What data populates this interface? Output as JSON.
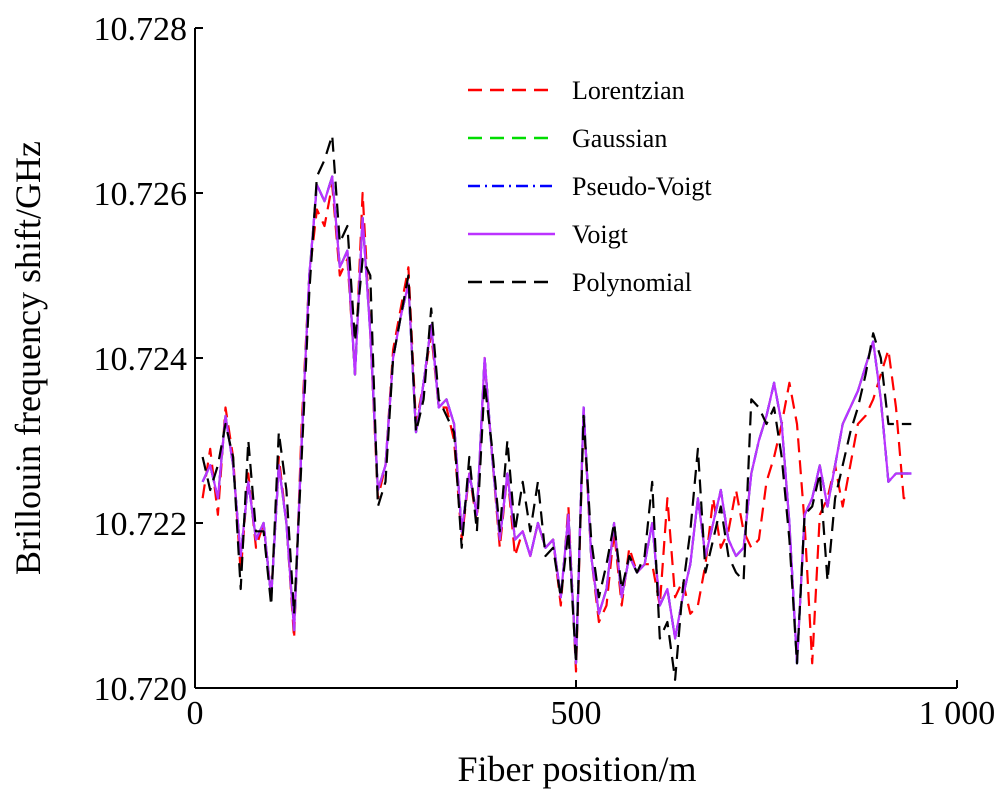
{
  "chart_data": {
    "type": "line",
    "xlabel": "Fiber position/m",
    "ylabel": "Brillouin frequency shift/GHz",
    "xlim": [
      0,
      1000
    ],
    "ylim": [
      10.72,
      10.728
    ],
    "xticks": [
      0,
      500,
      1000
    ],
    "xtick_labels": [
      "0",
      "500",
      "1 000"
    ],
    "yticks": [
      10.72,
      10.722,
      10.724,
      10.726,
      10.728
    ],
    "ytick_labels": [
      "10.720",
      "10.722",
      "10.724",
      "10.726",
      "10.728"
    ],
    "grid": false,
    "legend_position": "top-right",
    "x": [
      10,
      20,
      30,
      40,
      50,
      60,
      70,
      80,
      90,
      100,
      110,
      120,
      130,
      140,
      150,
      160,
      170,
      180,
      190,
      200,
      210,
      220,
      230,
      240,
      250,
      260,
      270,
      280,
      290,
      300,
      310,
      320,
      330,
      340,
      350,
      360,
      370,
      380,
      390,
      400,
      410,
      420,
      430,
      440,
      450,
      460,
      470,
      480,
      490,
      500,
      510,
      520,
      530,
      540,
      550,
      560,
      570,
      580,
      590,
      600,
      610,
      620,
      630,
      640,
      650,
      660,
      670,
      680,
      690,
      700,
      710,
      720,
      730,
      740,
      750,
      760,
      770,
      780,
      790,
      800,
      810,
      820,
      830,
      840,
      850,
      860,
      870,
      880,
      890,
      900,
      910,
      920,
      930,
      940
    ],
    "series": [
      {
        "name": "Lorentzian",
        "color": "#ff0000",
        "dash": "14,8",
        "values": [
          10.7223,
          10.7229,
          10.7221,
          10.7234,
          10.7228,
          10.7214,
          10.7226,
          10.7217,
          10.722,
          10.7211,
          10.7228,
          10.722,
          10.7206,
          10.7232,
          10.725,
          10.7258,
          10.7256,
          10.7261,
          10.725,
          10.7252,
          10.7238,
          10.726,
          10.7243,
          10.7223,
          10.7227,
          10.7241,
          10.7246,
          10.7251,
          10.7232,
          10.7237,
          10.7243,
          10.7234,
          10.7234,
          10.723,
          10.7218,
          10.7226,
          10.722,
          10.724,
          10.7228,
          10.7217,
          10.7226,
          10.7216,
          10.7219,
          10.7216,
          10.722,
          10.7217,
          10.7218,
          10.721,
          10.7222,
          10.7202,
          10.7233,
          10.7216,
          10.7208,
          10.721,
          10.7219,
          10.721,
          10.7217,
          10.7214,
          10.7215,
          10.7215,
          10.721,
          10.7223,
          10.7211,
          10.7213,
          10.7209,
          10.721,
          10.7215,
          10.7223,
          10.7217,
          10.7219,
          10.7224,
          10.7219,
          10.7217,
          10.7218,
          10.7225,
          10.7228,
          10.7232,
          10.7237,
          10.7232,
          10.722,
          10.7203,
          10.7221,
          10.7223,
          10.7227,
          10.7222,
          10.7227,
          10.7232,
          10.7233,
          10.7235,
          10.7238,
          10.7241,
          10.7234,
          10.7223,
          10.7223
        ]
      },
      {
        "name": "Gaussian",
        "color": "#00dd00",
        "dash": "14,8",
        "values": [
          10.7225,
          10.7227,
          10.7223,
          10.7233,
          10.7227,
          10.7216,
          10.7225,
          10.7218,
          10.722,
          10.7211,
          10.7227,
          10.722,
          10.7207,
          10.723,
          10.725,
          10.7261,
          10.7259,
          10.7262,
          10.7251,
          10.7253,
          10.7238,
          10.7257,
          10.7243,
          10.7224,
          10.7227,
          10.724,
          10.7245,
          10.7249,
          10.7231,
          10.7237,
          10.7244,
          10.7234,
          10.7235,
          10.7232,
          10.7219,
          10.7226,
          10.7221,
          10.724,
          10.7228,
          10.7218,
          10.7226,
          10.7218,
          10.7219,
          10.7216,
          10.722,
          10.7217,
          10.7218,
          10.7211,
          10.7221,
          10.7203,
          10.7234,
          10.7216,
          10.7209,
          10.7212,
          10.722,
          10.7211,
          10.7216,
          10.7214,
          10.7215,
          10.722,
          10.721,
          10.7212,
          10.7206,
          10.7211,
          10.7215,
          10.7223,
          10.7216,
          10.722,
          10.7224,
          10.7218,
          10.7216,
          10.7217,
          10.7226,
          10.723,
          10.7233,
          10.7237,
          10.7232,
          10.722,
          10.7203,
          10.7221,
          10.7223,
          10.7227,
          10.7222,
          10.7227,
          10.7232,
          10.7234,
          10.7236,
          10.7239,
          10.7242,
          10.7235,
          10.7225,
          10.7226,
          10.7226,
          10.7226
        ]
      },
      {
        "name": "Pseudo-Voigt",
        "color": "#0000ff",
        "dash": "12,5,2,5",
        "values": [
          10.7225,
          10.7227,
          10.7223,
          10.7233,
          10.7227,
          10.7216,
          10.7225,
          10.7218,
          10.722,
          10.7211,
          10.7227,
          10.722,
          10.7207,
          10.723,
          10.725,
          10.7261,
          10.7259,
          10.7262,
          10.7251,
          10.7253,
          10.7238,
          10.7257,
          10.7243,
          10.7224,
          10.7227,
          10.724,
          10.7245,
          10.7249,
          10.7231,
          10.7237,
          10.7244,
          10.7234,
          10.7235,
          10.7232,
          10.7219,
          10.7226,
          10.7221,
          10.724,
          10.7228,
          10.7218,
          10.7226,
          10.7218,
          10.7219,
          10.7216,
          10.722,
          10.7217,
          10.7218,
          10.7211,
          10.7221,
          10.7203,
          10.7234,
          10.7216,
          10.7209,
          10.7212,
          10.722,
          10.7211,
          10.7216,
          10.7214,
          10.7215,
          10.722,
          10.721,
          10.7212,
          10.7206,
          10.7211,
          10.7215,
          10.7223,
          10.7216,
          10.722,
          10.7224,
          10.7218,
          10.7216,
          10.7217,
          10.7226,
          10.723,
          10.7233,
          10.7237,
          10.7232,
          10.722,
          10.7203,
          10.7221,
          10.7223,
          10.7227,
          10.7222,
          10.7227,
          10.7232,
          10.7234,
          10.7236,
          10.7239,
          10.7242,
          10.7235,
          10.7225,
          10.7226,
          10.7226,
          10.7226
        ]
      },
      {
        "name": "Voigt",
        "color": "#bb33ff",
        "dash": "",
        "values": [
          10.7225,
          10.7227,
          10.7223,
          10.7233,
          10.7227,
          10.7216,
          10.7225,
          10.7218,
          10.722,
          10.7211,
          10.7227,
          10.722,
          10.7207,
          10.723,
          10.725,
          10.7261,
          10.7259,
          10.7262,
          10.7251,
          10.7253,
          10.7238,
          10.7257,
          10.7243,
          10.7224,
          10.7227,
          10.724,
          10.7245,
          10.7249,
          10.7231,
          10.7237,
          10.7244,
          10.7234,
          10.7235,
          10.7232,
          10.7219,
          10.7226,
          10.7221,
          10.724,
          10.7228,
          10.7218,
          10.7226,
          10.7218,
          10.7219,
          10.7216,
          10.722,
          10.7217,
          10.7218,
          10.7211,
          10.7221,
          10.7203,
          10.7234,
          10.7216,
          10.7209,
          10.7212,
          10.722,
          10.7211,
          10.7216,
          10.7214,
          10.7215,
          10.722,
          10.721,
          10.7212,
          10.7206,
          10.7211,
          10.7215,
          10.7223,
          10.7216,
          10.722,
          10.7224,
          10.7218,
          10.7216,
          10.7217,
          10.7226,
          10.723,
          10.7233,
          10.7237,
          10.7232,
          10.722,
          10.7203,
          10.7221,
          10.7223,
          10.7227,
          10.7222,
          10.7227,
          10.7232,
          10.7234,
          10.7236,
          10.7239,
          10.7242,
          10.7235,
          10.7225,
          10.7226,
          10.7226,
          10.7226
        ]
      },
      {
        "name": "Polynomial",
        "color": "#000000",
        "dash": "14,8",
        "values": [
          10.7228,
          10.7224,
          10.7227,
          10.7232,
          10.7228,
          10.7212,
          10.723,
          10.7219,
          10.7219,
          10.721,
          10.7231,
          10.7224,
          10.7209,
          10.7228,
          10.7248,
          10.7262,
          10.7264,
          10.7267,
          10.7254,
          10.7256,
          10.7242,
          10.7252,
          10.725,
          10.7222,
          10.7225,
          10.724,
          10.7245,
          10.725,
          10.7231,
          10.7235,
          10.7246,
          10.7235,
          10.7233,
          10.7231,
          10.7217,
          10.7228,
          10.7219,
          10.7237,
          10.7229,
          10.7219,
          10.723,
          10.7219,
          10.7225,
          10.7219,
          10.7225,
          10.7216,
          10.7217,
          10.7211,
          10.7219,
          10.7203,
          10.7233,
          10.7218,
          10.7211,
          10.7215,
          10.722,
          10.7212,
          10.7216,
          10.7214,
          10.7216,
          10.7225,
          10.7206,
          10.7208,
          10.7201,
          10.7212,
          10.7219,
          10.7229,
          10.7214,
          10.7218,
          10.7222,
          10.7216,
          10.7214,
          10.7213,
          10.7235,
          10.7234,
          10.7232,
          10.7234,
          10.7228,
          10.7218,
          10.7203,
          10.7221,
          10.7222,
          10.7226,
          10.7213,
          10.7223,
          10.7227,
          10.7231,
          10.7234,
          10.7238,
          10.7243,
          10.724,
          10.7232,
          10.7232,
          10.7232,
          10.7232
        ]
      }
    ]
  }
}
